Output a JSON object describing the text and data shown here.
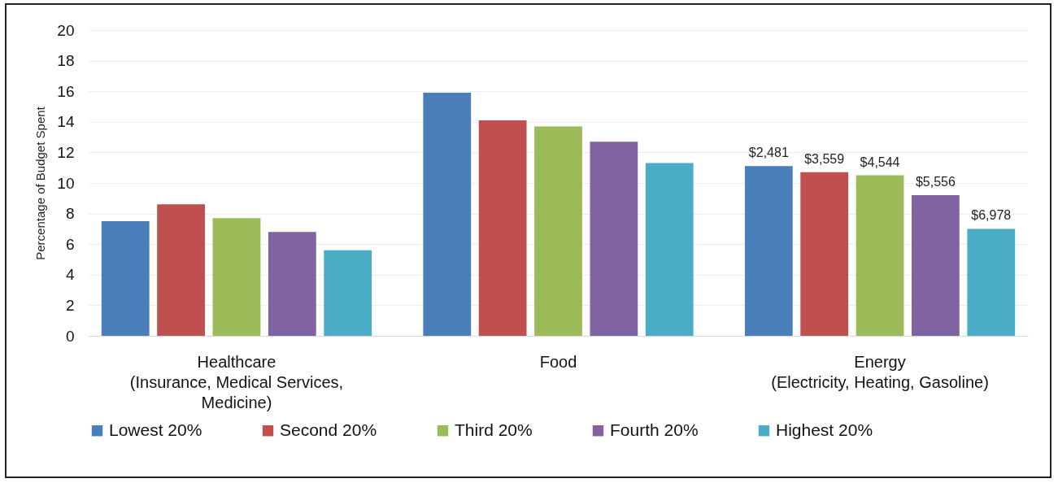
{
  "chart_data": {
    "type": "bar",
    "ylabel": "Percentage of Budget Spent",
    "categories": [
      "Healthcare\n(Insurance, Medical Services,\nMedicine)",
      "Food",
      "Energy\n(Electricity, Heating, Gasoline)"
    ],
    "series": [
      {
        "name": "Lowest 20%",
        "color": "#4a7ebb",
        "values": [
          7.5,
          15.9,
          11.1
        ]
      },
      {
        "name": "Second 20%",
        "color": "#c0504d",
        "values": [
          8.6,
          14.1,
          10.7
        ]
      },
      {
        "name": "Third 20%",
        "color": "#9bbb59",
        "values": [
          7.7,
          13.7,
          10.5
        ]
      },
      {
        "name": "Fourth 20%",
        "color": "#8064a2",
        "values": [
          6.8,
          12.7,
          9.2
        ]
      },
      {
        "name": "Highest 20%",
        "color": "#4bacc6",
        "values": [
          5.6,
          11.3,
          7.0
        ]
      }
    ],
    "annotations": [
      "$2,481",
      "$3,559",
      "$4,544",
      "$5,556",
      "$6,978"
    ],
    "ylim": [
      0,
      20
    ],
    "yticks": [
      0,
      2,
      4,
      6,
      8,
      10,
      12,
      14,
      16,
      18,
      20
    ],
    "grid": "y",
    "legend": "bottom"
  }
}
